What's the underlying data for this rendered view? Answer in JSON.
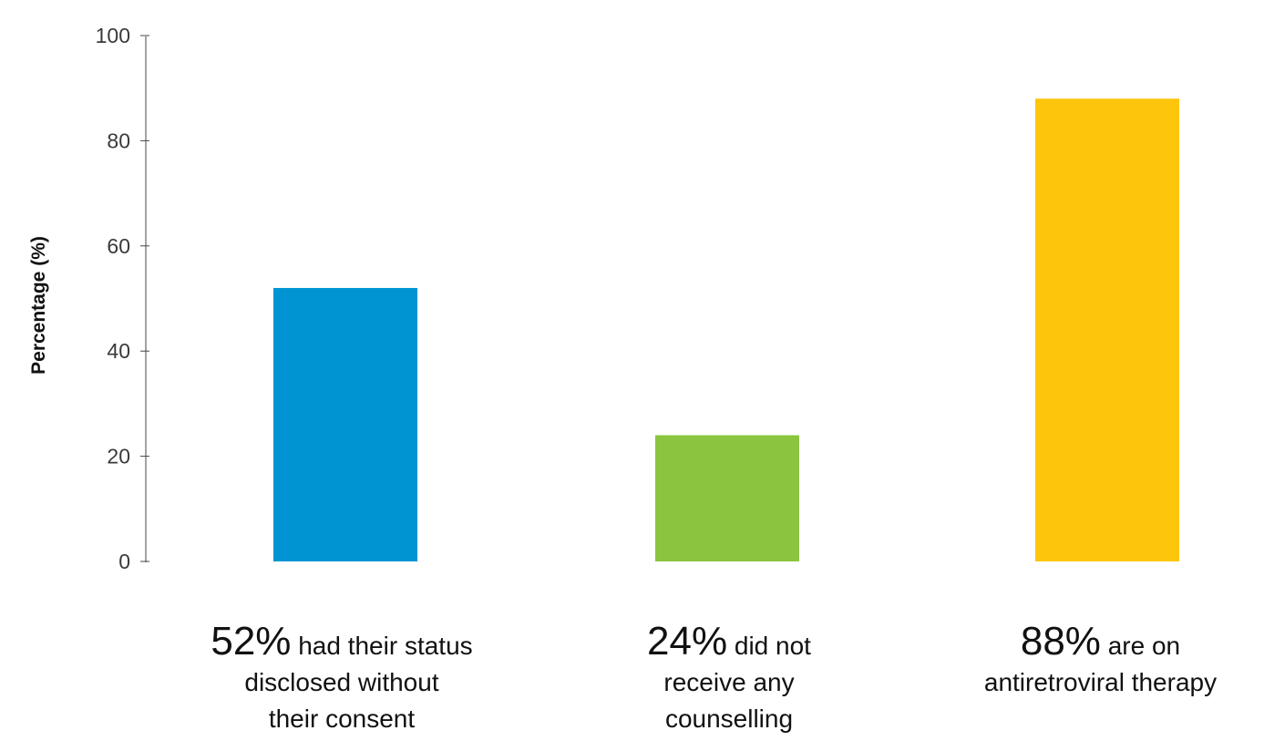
{
  "chart_data": {
    "type": "bar",
    "categories": [
      "had their status disclosed without their consent",
      "did not receive any counselling",
      "are on antiretroviral therapy"
    ],
    "values": [
      52,
      24,
      88
    ],
    "colors": [
      "#0094D2",
      "#8BC540",
      "#FDC50C"
    ],
    "ylabel": "Percentage (%)",
    "ylim": [
      0,
      100
    ],
    "yticks": [
      "0",
      "20",
      "40",
      "60",
      "80",
      "100"
    ],
    "grid": false,
    "legend": "none"
  },
  "captions": [
    {
      "pct": "52%",
      "line1": "had their status",
      "line2": "disclosed without",
      "line3": "their consent"
    },
    {
      "pct": "24%",
      "line1": "did not",
      "line2": "receive any",
      "line3": "counselling"
    },
    {
      "pct": "88%",
      "line1": "are on",
      "line2": "antiretroviral therapy",
      "line3": ""
    }
  ]
}
